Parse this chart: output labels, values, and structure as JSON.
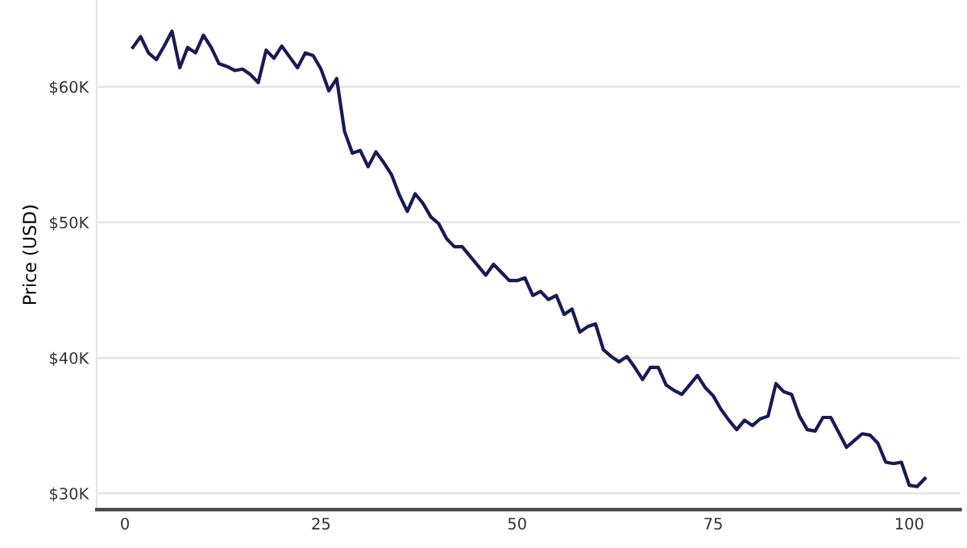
{
  "chart_data": {
    "type": "line",
    "ylabel": "Price (USD)",
    "x": [
      1,
      2,
      3,
      4,
      5,
      6,
      7,
      8,
      9,
      10,
      11,
      12,
      13,
      14,
      15,
      16,
      17,
      18,
      19,
      20,
      21,
      22,
      23,
      24,
      25,
      26,
      27,
      28,
      29,
      30,
      31,
      32,
      33,
      34,
      35,
      36,
      37,
      38,
      39,
      40,
      41,
      42,
      43,
      44,
      45,
      46,
      47,
      48,
      49,
      50,
      51,
      52,
      53,
      54,
      55,
      56,
      57,
      58,
      59,
      60,
      61,
      62,
      63,
      64,
      65,
      66,
      67,
      68,
      69,
      70,
      71,
      72,
      73,
      74,
      75,
      76,
      77,
      78,
      79,
      80,
      81,
      82,
      83,
      84,
      85,
      86,
      87,
      88,
      89,
      90,
      91,
      92,
      93,
      94,
      95,
      96,
      97,
      98,
      99,
      100,
      101,
      102
    ],
    "series": [
      {
        "color": "#1b1a52",
        "values": [
          62.9,
          63.7,
          62.5,
          62.0,
          63.0,
          64.1,
          61.4,
          62.9,
          62.5,
          63.8,
          62.9,
          61.7,
          61.5,
          61.2,
          61.3,
          60.9,
          60.3,
          62.7,
          62.1,
          63.0,
          62.2,
          61.4,
          62.5,
          62.3,
          61.3,
          59.7,
          60.6,
          56.7,
          55.1,
          55.3,
          54.1,
          55.2,
          54.4,
          53.5,
          52.0,
          50.8,
          52.1,
          51.4,
          50.4,
          49.9,
          48.8,
          48.2,
          48.2,
          47.5,
          46.8,
          46.1,
          46.9,
          46.3,
          45.7,
          45.7,
          45.9,
          44.6,
          44.9,
          44.3,
          44.6,
          43.2,
          43.6,
          41.9,
          42.3,
          42.5,
          40.6,
          40.1,
          39.7,
          40.1,
          39.3,
          38.4,
          39.3,
          39.3,
          38.0,
          37.6,
          37.3,
          38.0,
          38.7,
          37.8,
          37.2,
          36.2,
          35.4,
          34.7,
          35.4,
          35.0,
          35.5,
          35.7,
          38.1,
          37.5,
          37.3,
          35.7,
          34.7,
          34.6,
          35.6,
          35.6,
          34.5,
          33.4,
          33.9,
          34.4,
          34.3,
          33.7,
          32.3,
          32.2,
          32.3,
          30.6,
          30.5,
          31.1
        ]
      }
    ],
    "xlim": [
      -3.6,
      106.5
    ],
    "xticks": [
      0,
      25,
      50,
      75,
      100
    ],
    "ylim": [
      28.8,
      66.4
    ],
    "yticks": [
      {
        "value": 30,
        "label": "$30K"
      },
      {
        "value": 40,
        "label": "$40K"
      },
      {
        "value": 50,
        "label": "$50K"
      },
      {
        "value": 60,
        "label": "$60K"
      }
    ],
    "grid": "y",
    "marker": "none",
    "line_style": "solid"
  }
}
